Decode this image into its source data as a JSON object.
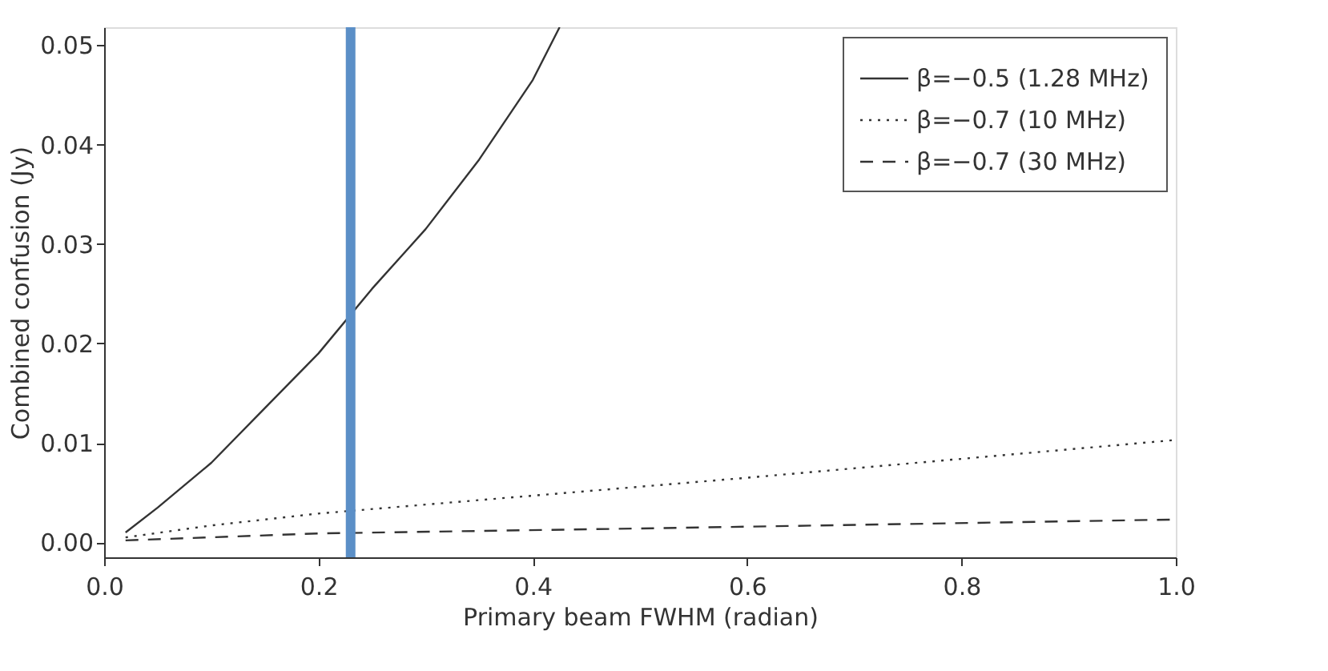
{
  "chart_data": {
    "type": "line",
    "xlabel": "Primary beam FWHM (radian)",
    "ylabel": "Combined confusion (Jy)",
    "xlim": [
      0,
      1.0
    ],
    "ylim": [
      -0.0015,
      0.0518
    ],
    "xticks": [
      {
        "value": 0,
        "label": "0.0"
      },
      {
        "value": 0.2,
        "label": "0.2"
      },
      {
        "value": 0.4,
        "label": "0.4"
      },
      {
        "value": 0.6,
        "label": "0.6"
      },
      {
        "value": 0.8,
        "label": "0.8"
      },
      {
        "value": 1.0,
        "label": "1.0"
      }
    ],
    "yticks": [
      {
        "value": 0,
        "label": "0.00"
      },
      {
        "value": 0.01,
        "label": "0.01"
      },
      {
        "value": 0.02,
        "label": "0.02"
      },
      {
        "value": 0.03,
        "label": "0.03"
      },
      {
        "value": 0.04,
        "label": "0.04"
      },
      {
        "value": 0.05,
        "label": "0.05"
      }
    ],
    "grid": false,
    "legend": "top right",
    "marker": "none",
    "series": [
      {
        "name": "β=−0.5 (1.28 MHz)",
        "color": "#333333",
        "line_style": "solid",
        "x": [
          0.02,
          0.05,
          0.1,
          0.15,
          0.2,
          0.25,
          0.3,
          0.35,
          0.4,
          0.425
        ],
        "values": [
          0.001,
          0.0035,
          0.008,
          0.0135,
          0.019,
          0.0255,
          0.0315,
          0.0385,
          0.0465,
          0.0518
        ]
      },
      {
        "name": "β=−0.7 (10 MHz)",
        "color": "#333333",
        "line_style": "dotted",
        "x": [
          0.02,
          0.1,
          0.2,
          0.4,
          0.6,
          0.8,
          1.0
        ],
        "values": [
          0.0005,
          0.0017,
          0.0029,
          0.0047,
          0.0065,
          0.0084,
          0.0103
        ]
      },
      {
        "name": "β=−0.7 (30 MHz)",
        "color": "#333333",
        "line_style": "dashed",
        "x": [
          0.02,
          0.2,
          0.5,
          1.0
        ],
        "values": [
          0.0002,
          0.0009,
          0.0014,
          0.0023
        ]
      }
    ],
    "ref_lines": [
      {
        "axis": "x",
        "value": 0.23,
        "label": null,
        "color": "#5b8fc7"
      }
    ]
  }
}
